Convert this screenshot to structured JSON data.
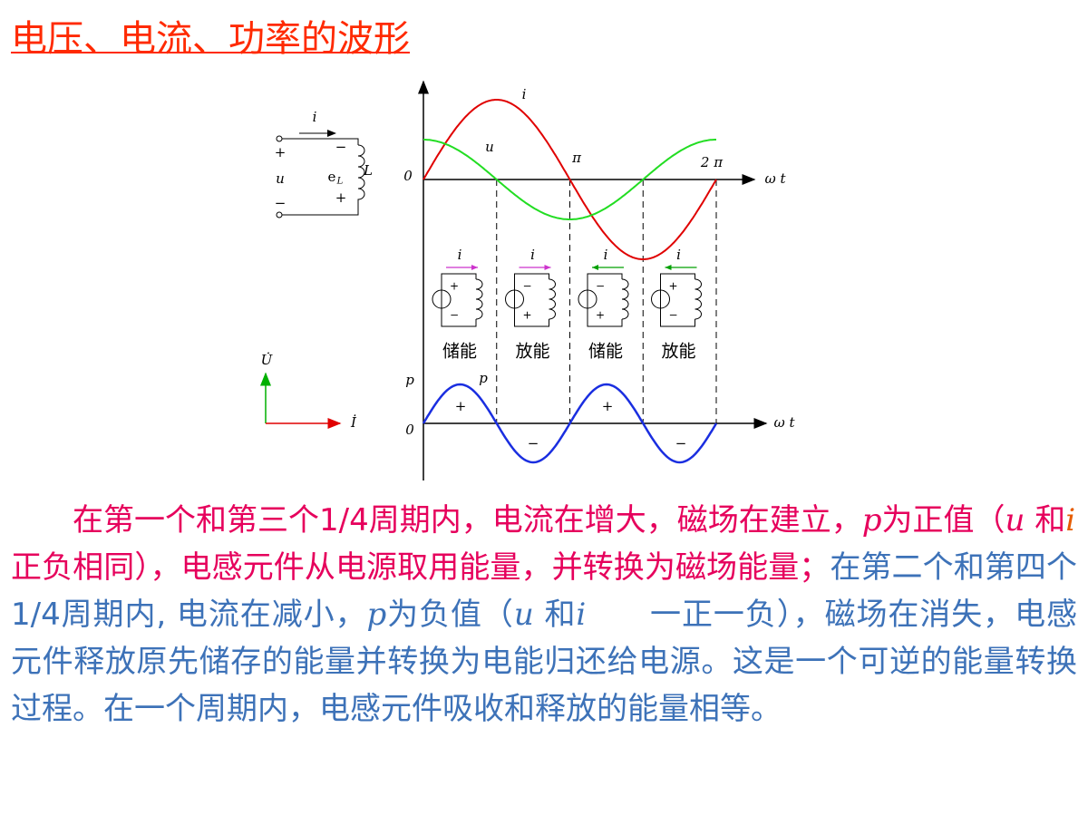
{
  "title": "电压、电流、功率的波形",
  "circuit": {
    "current_label": "i",
    "terminal_plus": "+",
    "voltage_label": "u",
    "terminal_minus": "−",
    "emf_label": "e",
    "emf_subscript": "L",
    "inductor_label": "L",
    "emf_top_sign": "−",
    "emf_bottom_sign": "+"
  },
  "waveform": {
    "current_label": "i",
    "voltage_label": "u",
    "origin": "0",
    "pi_label": "π",
    "two_pi_label": "2 π",
    "time_axis": "ω t"
  },
  "stages": [
    {
      "current": "i",
      "label": "储能",
      "top_sign": "+",
      "bottom_sign": "−"
    },
    {
      "current": "i",
      "label": "放能",
      "top_sign": "−",
      "bottom_sign": "+"
    },
    {
      "current": "i",
      "label": "储能",
      "top_sign": "−",
      "bottom_sign": "+"
    },
    {
      "current": "i",
      "label": "放能",
      "top_sign": "+",
      "bottom_sign": "−"
    }
  ],
  "power": {
    "axis_label": "p",
    "curve_label": "p",
    "origin": "0",
    "time_axis": "ω t",
    "signs": [
      "+",
      "−",
      "+",
      "−"
    ]
  },
  "phasor": {
    "voltage": "U̇",
    "current": "İ"
  },
  "paragraph": [
    "在第一个和第三个1/4周期内，电流在增大，磁场在建立，",
    "p",
    "为正值（",
    "u",
    " 和",
    "i",
    "　 正负相同），电感元件从电源取用能量，并转换为磁场能量；",
    "在第二个和第四个1/4周期内, 电流在减小，",
    "p",
    "为负值（",
    "u",
    " 和",
    "i",
    "　　一正一负），磁场在消失，电感元件释放原先储存的能量并转换为电能归还给电源。这是一个可逆的能量转换过程。在一个周期内，电感元件吸收和释放的能量相等。"
  ]
}
